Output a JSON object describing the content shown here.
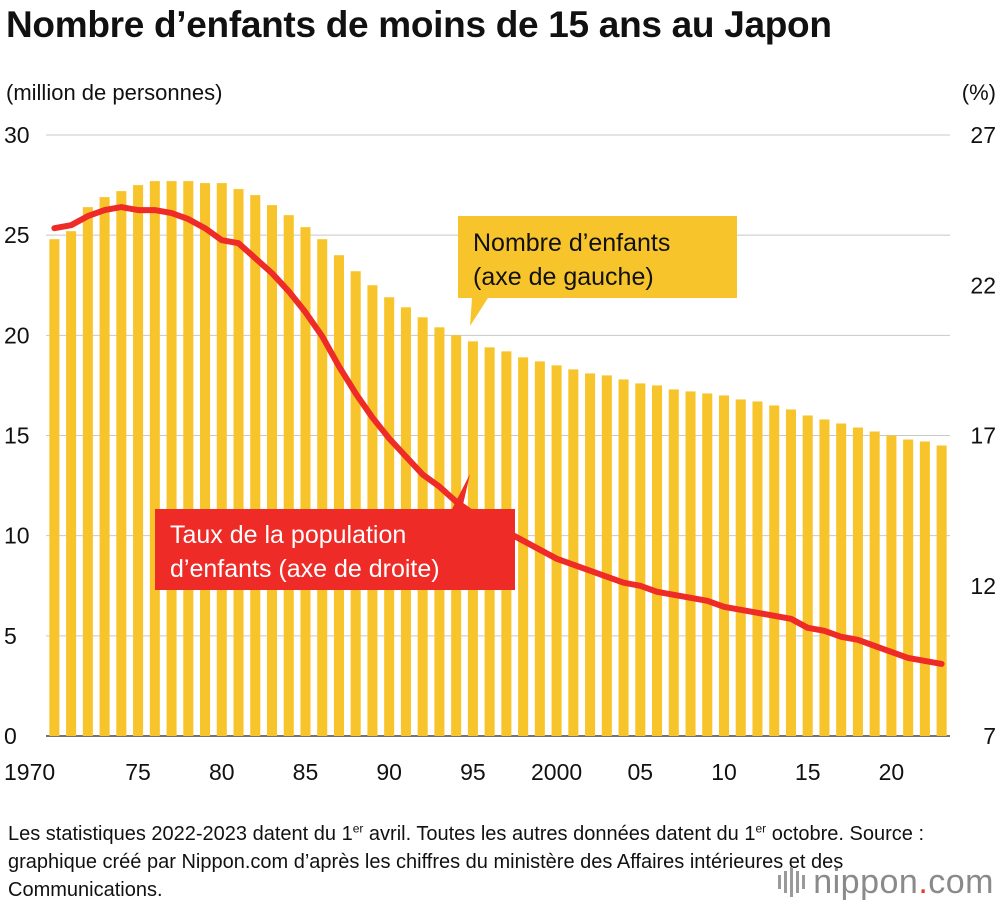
{
  "chart_data": {
    "type": "bar+line",
    "title": "Nombre d’enfants de moins de 15 ans au Japon",
    "ylabel_left": "(million de personnes)",
    "ylabel_right": "(%)",
    "ylim_left": [
      0,
      30
    ],
    "ylim_right": [
      7,
      27
    ],
    "yticks_left": [
      "0",
      "5",
      "10",
      "15",
      "20",
      "25",
      "30"
    ],
    "yticks_right": [
      "7",
      "12",
      "17",
      "22",
      "27"
    ],
    "x": [
      1970,
      1971,
      1972,
      1973,
      1974,
      1975,
      1976,
      1977,
      1978,
      1979,
      1980,
      1981,
      1982,
      1983,
      1984,
      1985,
      1986,
      1987,
      1988,
      1989,
      1990,
      1991,
      1992,
      1993,
      1994,
      1995,
      1996,
      1997,
      1998,
      1999,
      2000,
      2001,
      2002,
      2003,
      2004,
      2005,
      2006,
      2007,
      2008,
      2009,
      2010,
      2011,
      2012,
      2013,
      2014,
      2015,
      2016,
      2017,
      2018,
      2019,
      2020,
      2021,
      2022,
      2023
    ],
    "xtick_labels": [
      {
        "x": 1970,
        "label": "1970"
      },
      {
        "x": 1975,
        "label": "75"
      },
      {
        "x": 1980,
        "label": "80"
      },
      {
        "x": 1985,
        "label": "85"
      },
      {
        "x": 1990,
        "label": "90"
      },
      {
        "x": 1995,
        "label": "95"
      },
      {
        "x": 2000,
        "label": "2000"
      },
      {
        "x": 2005,
        "label": "05"
      },
      {
        "x": 2010,
        "label": "10"
      },
      {
        "x": 2015,
        "label": "15"
      },
      {
        "x": 2020,
        "label": "20"
      }
    ],
    "series": [
      {
        "name": "Nombre d’enfants (axe de gauche)",
        "type": "bar",
        "axis": "left",
        "color": "#f7c52b",
        "values": [
          24.8,
          25.2,
          26.4,
          26.9,
          27.2,
          27.5,
          27.7,
          27.7,
          27.7,
          27.6,
          27.6,
          27.3,
          27.0,
          26.5,
          26.0,
          25.4,
          24.8,
          24.0,
          23.2,
          22.5,
          21.9,
          21.4,
          20.9,
          20.4,
          20.0,
          19.7,
          19.4,
          19.2,
          18.9,
          18.7,
          18.5,
          18.3,
          18.1,
          18.0,
          17.8,
          17.6,
          17.5,
          17.3,
          17.2,
          17.1,
          17.0,
          16.8,
          16.7,
          16.5,
          16.3,
          16.0,
          15.8,
          15.6,
          15.4,
          15.2,
          15.0,
          14.8,
          14.7,
          14.5
        ]
      },
      {
        "name": "Taux de la population d’enfants (axe de droite)",
        "type": "line",
        "axis": "right",
        "color": "#ee2b27",
        "values": [
          23.9,
          24.0,
          24.3,
          24.5,
          24.6,
          24.5,
          24.5,
          24.4,
          24.2,
          23.9,
          23.5,
          23.4,
          22.9,
          22.4,
          21.8,
          21.1,
          20.3,
          19.3,
          18.4,
          17.6,
          16.9,
          16.3,
          15.7,
          15.3,
          14.8,
          14.4,
          14.1,
          13.8,
          13.5,
          13.2,
          12.9,
          12.7,
          12.5,
          12.3,
          12.1,
          12.0,
          11.8,
          11.7,
          11.6,
          11.5,
          11.3,
          11.2,
          11.1,
          11.0,
          10.9,
          10.6,
          10.5,
          10.3,
          10.2,
          10.0,
          9.8,
          9.6,
          9.5,
          9.4
        ]
      }
    ],
    "annotations": {
      "bar_label": [
        "Nombre d’enfants",
        "(axe de gauche)"
      ],
      "line_label": [
        "Taux de la population",
        "d’enfants (axe de droite)"
      ]
    },
    "grid": true
  },
  "footnote": {
    "part1": "Les statistiques 2022-2023 datent du 1",
    "sup1": "er",
    "part2": " avril. Toutes les autres données datent du 1",
    "sup2": "er",
    "part3": " octobre. Source : graphique créé par Nippon.com d’après les chiffres du ministère des Affaires intérieures et des Communications."
  },
  "logo": {
    "name": "nippon",
    "dot": ".",
    "suffix": "com",
    "icon": "soundwave-icon"
  }
}
